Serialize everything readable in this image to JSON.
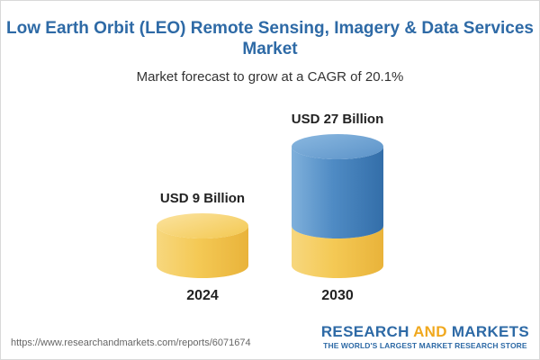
{
  "header": {
    "title_line1": "Low Earth Orbit (LEO) Remote Sensing, Imagery & Data Services",
    "title_line2": "Market",
    "subtitle": "Market forecast to grow at a CAGR of 20.1%"
  },
  "chart_data": {
    "type": "bar",
    "title": "Low Earth Orbit (LEO) Remote Sensing, Imagery & Data Services Market",
    "subtitle": "Market forecast to grow at a CAGR of 20.1%",
    "categories": [
      "2024",
      "2030"
    ],
    "values": [
      9,
      27
    ],
    "unit": "USD Billion",
    "data_labels": [
      "USD 9 Billion",
      "USD 27 Billion"
    ],
    "cagr_percent": 20.1,
    "xlabel": "",
    "ylabel": "",
    "ylim": [
      0,
      27
    ],
    "grid": false,
    "legend": "none",
    "colors": {
      "base": "#f3c44b",
      "growth": "#4a84bd",
      "label": "#222222"
    }
  },
  "footer": {
    "url": "https://www.researchandmarkets.com/reports/6071674",
    "brand_part1": "RESEARCH",
    "brand_part2": "AND",
    "brand_part3": "MARKETS",
    "tagline": "THE WORLD'S LARGEST MARKET RESEARCH STORE"
  }
}
